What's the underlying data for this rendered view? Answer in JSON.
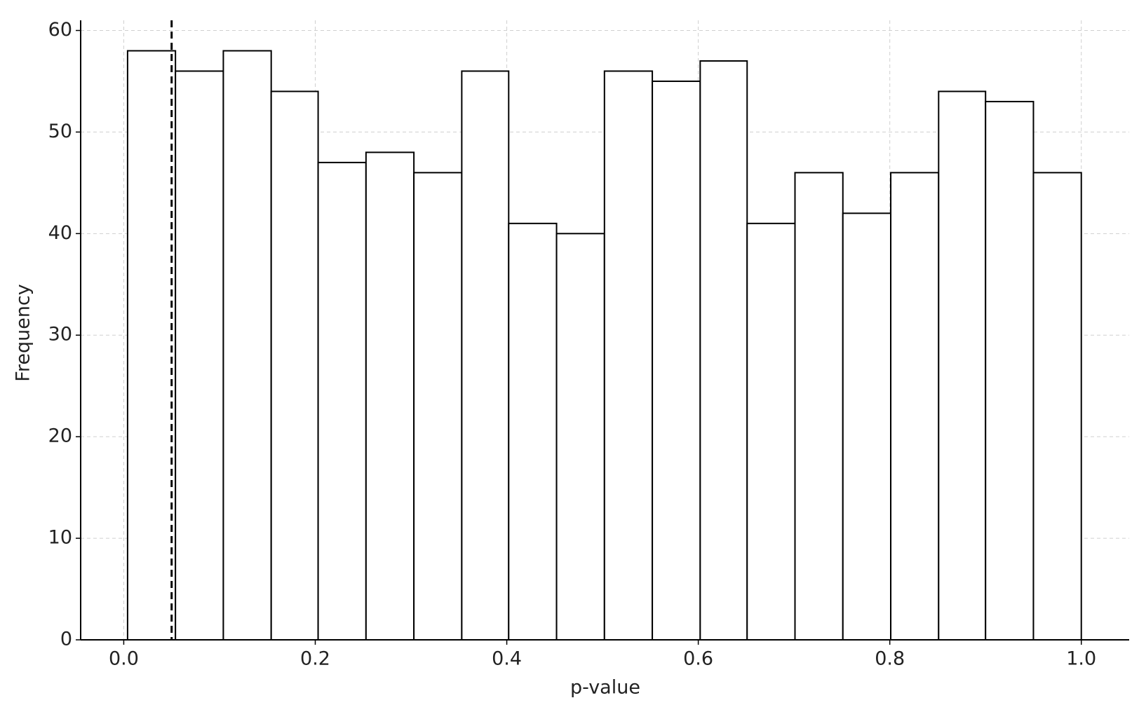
{
  "chart_data": {
    "type": "histogram",
    "xlabel": "p-value",
    "ylabel": "Frequency",
    "bins": [
      0.004,
      0.054,
      0.104,
      0.154,
      0.203,
      0.253,
      0.303,
      0.353,
      0.402,
      0.452,
      0.502,
      0.552,
      0.602,
      0.651,
      0.701,
      0.751,
      0.801,
      0.851,
      0.9,
      0.95,
      1.0
    ],
    "values": [
      58,
      56,
      58,
      54,
      47,
      48,
      46,
      56,
      41,
      40,
      56,
      55,
      57,
      41,
      46,
      42,
      46,
      54,
      53,
      46
    ],
    "color": "#ffffff",
    "edgecolor": "#000000",
    "vline": 0.05,
    "xlim": [
      -0.045,
      1.05
    ],
    "ylim": [
      0,
      61
    ],
    "xticks": [
      {
        "value": 0,
        "label": "0.0"
      },
      0.2,
      0.4,
      0.6,
      0.8,
      {
        "value": 1,
        "label": "1.0"
      }
    ],
    "yticks": [
      0,
      10,
      20,
      30,
      40,
      50,
      60
    ],
    "grid": true
  }
}
